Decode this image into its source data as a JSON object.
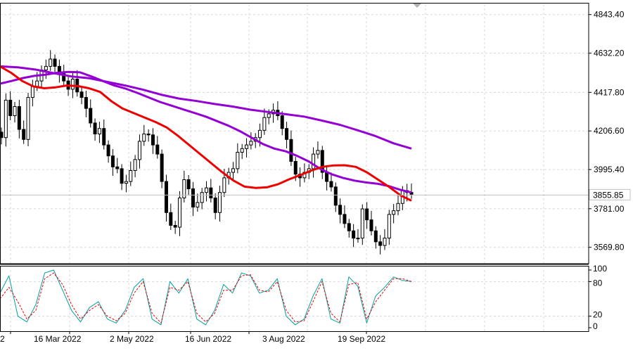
{
  "chart_data": {
    "type": "candlestick",
    "panels": [
      "price",
      "stochastic"
    ],
    "price_axis": {
      "ticks": [
        "4843.40",
        "4632.20",
        "4417.80",
        "4206.60",
        "3995.40",
        "3781.00",
        "3569.80"
      ],
      "ylim": [
        3484,
        4900
      ],
      "current_price": "3855.85"
    },
    "x_axis": {
      "ticks": [
        "2",
        "16 Mar 2022",
        "2 May 2022",
        "16 Jun 2022",
        "3 Aug 2022",
        "19 Sep 2022"
      ]
    },
    "stochastic_axis": {
      "ticks": [
        "100",
        "80",
        "20",
        "0"
      ],
      "ylim": [
        0,
        100
      ]
    },
    "series": [
      {
        "name": "",
        "kind": "candles",
        "color": "#000000",
        "values": [
          4170,
          4375,
          4290,
          4340,
          4215,
          4160,
          4390,
          4450,
          4480,
          4540,
          4560,
          4600,
          4560,
          4520,
          4480,
          4435,
          4490,
          4420,
          4390,
          4330,
          4250,
          4190,
          4220,
          4130,
          4070,
          4010,
          4000,
          3920,
          3930,
          3990,
          4050,
          4150,
          4190,
          4185,
          4130,
          4080,
          3930,
          3760,
          3690,
          3680,
          3840,
          3940,
          3890,
          3790,
          3815,
          3870,
          3895,
          3840,
          3760,
          3870,
          3950,
          3980,
          4000,
          4090,
          4110,
          4130,
          4150,
          4170,
          4210,
          4280,
          4300,
          4320,
          4290,
          4220,
          4160,
          4040,
          3970,
          3950,
          3980,
          4000,
          4080,
          4100,
          3980,
          3930,
          3900,
          3800,
          3750,
          3700,
          3660,
          3620,
          3620,
          3780,
          3720,
          3660,
          3600,
          3580,
          3620,
          3750,
          3770,
          3810,
          3880,
          3870,
          3860
        ]
      },
      {
        "name": "",
        "kind": "ma-fast",
        "color": "#ee0000",
        "values": [
          4560,
          4525,
          4480,
          4450,
          4440,
          4445,
          4455,
          4452,
          4440,
          4420,
          4370,
          4330,
          4305,
          4280,
          4255,
          4225,
          4180,
          4130,
          4080,
          4030,
          3980,
          3935,
          3902,
          3895,
          3898,
          3915,
          3942,
          3965,
          3990,
          4010,
          4018,
          4019,
          4010,
          3980,
          3940,
          3900,
          3855,
          3825
        ]
      },
      {
        "name": "",
        "kind": "ma-slow",
        "color": "#9400d3",
        "values": [
          4465,
          4480,
          4496,
          4508,
          4515,
          4525,
          4530,
          4527,
          4505,
          4480,
          4455,
          4438,
          4415,
          4390,
          4365,
          4345,
          4325,
          4305,
          4285,
          4260,
          4235,
          4205,
          4170,
          4135,
          4110,
          4095,
          4070,
          4040,
          4000,
          3970,
          3950,
          3935,
          3925,
          3918,
          3905,
          3885,
          3870
        ]
      },
      {
        "name": "",
        "kind": "ma-long",
        "color": "#9400d3",
        "values": [
          4560,
          4555,
          4542,
          4523,
          4505,
          4495,
          4475,
          4455,
          4432,
          4405,
          4384,
          4370,
          4354,
          4340,
          4323,
          4310,
          4298,
          4285,
          4263,
          4240,
          4210,
          4178,
          4139,
          4110
        ]
      },
      {
        "name": "",
        "kind": "stoch-main",
        "color": "#00a0a0",
        "values": [
          60,
          90,
          20,
          10,
          40,
          95,
          100,
          65,
          30,
          10,
          35,
          45,
          15,
          8,
          30,
          70,
          85,
          15,
          5,
          80,
          60,
          85,
          15,
          5,
          30,
          75,
          60,
          95,
          90,
          60,
          65,
          85,
          20,
          5,
          15,
          55,
          85,
          15,
          8,
          88,
          72,
          8,
          55,
          70,
          88,
          82,
          80
        ]
      },
      {
        "name": "",
        "kind": "stoch-signal",
        "color": "#ee0000",
        "values": [
          50,
          70,
          45,
          15,
          30,
          85,
          95,
          75,
          40,
          15,
          30,
          40,
          20,
          12,
          25,
          60,
          80,
          25,
          8,
          70,
          65,
          80,
          25,
          10,
          25,
          65,
          65,
          90,
          92,
          65,
          62,
          80,
          30,
          10,
          12,
          45,
          80,
          25,
          10,
          75,
          78,
          15,
          45,
          65,
          85,
          85,
          80
        ]
      }
    ]
  }
}
